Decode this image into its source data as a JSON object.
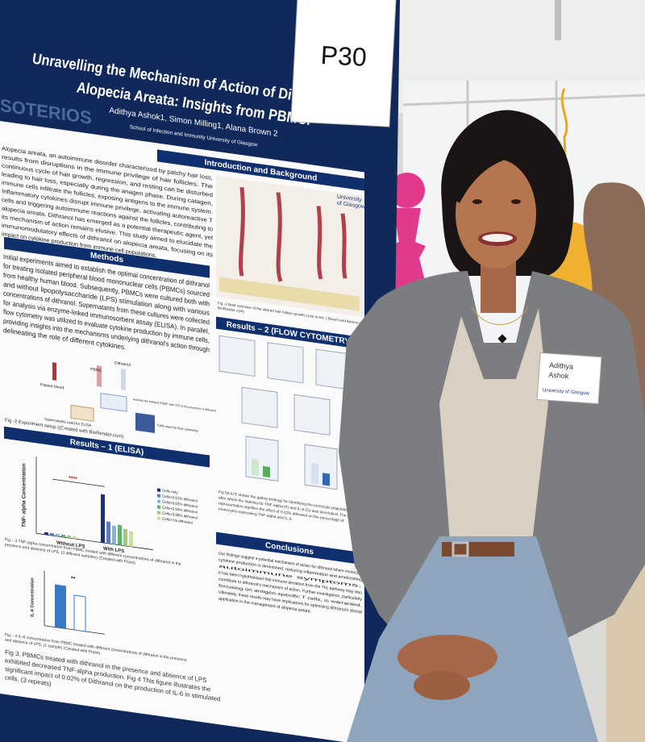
{
  "sign": "P30",
  "poster": {
    "watermark": "SOTERIOS",
    "title": [
      "Unravelling the Mechanism of Action of Dithranol on",
      "Alopecia Areata: Insights from PBMC."
    ],
    "authors": "Adithya Ashok1, Simon Milling1, Alana Brown 2",
    "affiliation": "School of Infection and Immunity University of Glasgow",
    "logo": [
      "University",
      "of Glasgow"
    ],
    "sections": [
      {
        "heading": "Introduction and Background",
        "lines": [
          "Alopecia areata, an autoimmune disorder characterized by patchy hair loss,",
          "results from disruptions in the immune privilege of hair follicles. The",
          "continuous cycle of hair growth, regression, and resting can be disturbed",
          "leading to hair loss, especially during the anagen phase. During catagen,",
          "immune cells infiltrate the follicles, exposing antigens to the immune system.",
          "Inflammatory cytokines disrupt immune privilege, activating autoreactive T",
          "cells and triggering autoimmune reactions against the follicles, contributing to",
          "alopecia areata. Dithranol has emerged as a potential therapeutic agent, yet",
          "its mechanism of action remains elusive. This study aimed to elucidate the",
          "immunomodulatory effects of dithranol on alopecia areata, focusing on its",
          "impact on cytokine production from immune cell populations."
        ]
      },
      {
        "heading": "Methods",
        "lines": [
          "Initial experiments aimed to establish the optimal concentration of dithranol",
          "for treating isolated peripheral blood mononuclear cells (PBMCs) sourced",
          "from healthy human blood. Subsequently, PBMCs were cultured both with",
          "and without lipopolysaccharide (LPS) stimulation along with various",
          "concentrations of dithranol. Supernatants from these cultures were collected",
          "for analysis via enzyme-linked immunosorbent assay (ELISA). In parallel,",
          "flow cytometry was utilized to evaluate cytokine production by immune cells,",
          "providing insights into the mechanisms underlying dithranol's action through",
          "delineating the role of different cytokines."
        ]
      },
      {
        "heading": "Results – 1 (ELISA)"
      },
      {
        "heading": "Results – 2 (FLOW CYTOMETRY)"
      },
      {
        "heading": "Conclusions",
        "lines": [
          "Our findings suggest a potential mechanism of action for dithranol where monocyte",
          "cytokine production is diminished, reducing inflammation and ameliorating",
          "autoimmune symptoms.",
          "It has been hypothesised that immune deviation from the Th1 pathway may also",
          "contribute to dithranol's mechanism of action. Further investigation, particularly",
          "focusing on antigen-specific T cells, is warranted.",
          "Ultimately, these results may have implications for optimising dithranol's clinical",
          "application in the management of alopecia areata."
        ]
      }
    ],
    "captions": [
      [
        "Fig -1 Brief overview of the altered hair follicle growth cycle in AA. ( Bloom and Aamos (Created with",
        "BioRender.com)"
      ],
      [
        "Fig -2 Experiment setup ((Created with BioRender.com)"
      ],
      [
        "Fig – 3 TNF-alpha concentration from PBMC treated with different concentrations of dithranol in the",
        "presence and absence of LPS. (3 different samples) (Created with Prism)"
      ],
      [
        "Fig – 4 IL-6 concentration from PBMC treated with different concentrations of dithranol in the presence",
        "and absence of LPS. (1 sample) (Created with Prism)"
      ],
      [
        "Fig 5A to E shows the gating strategy for identifying the monocyte population,",
        "after which the staining for TNF-alpha (F) and IL-6 (G) was developed. The graph",
        "representation signifies the effect of 0.02% dithranol on the percentage of",
        "monocytes expressing TNF-alpha and IL-6."
      ],
      [
        "Fig 3. PBMCs treated with dithranol in the presence and absence of LPS",
        "exhibited decreased TNF-alpha production. Fig 4 This figure illustrates the",
        "significant impact of 0.02% of Dithranol on the production of IL-6 in stimulated",
        "cells. (3 repeats)"
      ]
    ],
    "labels": [
      "Patient blood",
      "PBMC",
      "Dithranol",
      "Activate the isolated PBMC with LPS in the presence of dithranol",
      "Supernatants used for ELISA",
      "Cells used for flow cytometry",
      "TNF- alpha Concentration",
      "Without LPS",
      "With LPS",
      "****",
      "IL-6 Concentration",
      "**"
    ],
    "legend": [
      "Cells only",
      "Cells+0.01% dithranol",
      "Cells+0.02% dithranol",
      "Cells+0.04% dithranol",
      "Cells+0.08% dithranol",
      "Cells+1% dithranol"
    ]
  },
  "badge": [
    "Adithya",
    "Ashok",
    "University of Glasgow"
  ]
}
